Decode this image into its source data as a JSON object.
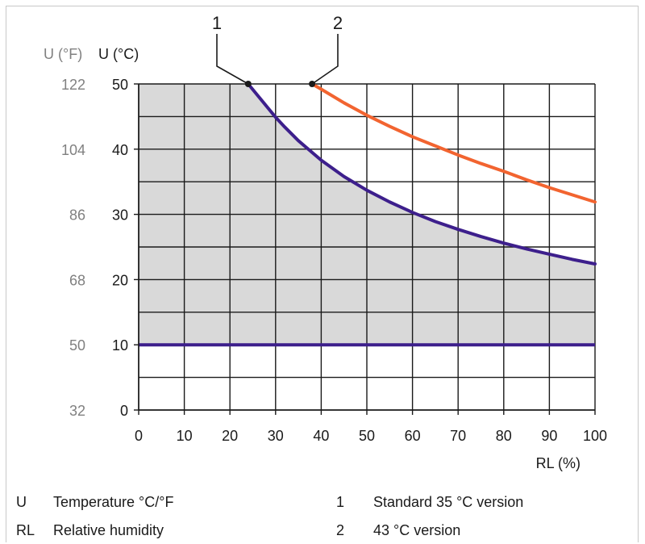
{
  "chart_data": {
    "type": "line",
    "xlabel": "RL (%)",
    "ylabel_f": "U (°F)",
    "ylabel_c": "U (°C)",
    "xlim": [
      0,
      100
    ],
    "ylim": [
      0,
      50
    ],
    "x_ticks": [
      "0",
      "10",
      "20",
      "30",
      "40",
      "50",
      "60",
      "70",
      "80",
      "90",
      "100"
    ],
    "y_ticks_c": [
      "0",
      "10",
      "20",
      "30",
      "40",
      "50"
    ],
    "y_ticks_f": [
      "32",
      "50",
      "68",
      "86",
      "104",
      "122"
    ],
    "grid": true,
    "series": [
      {
        "name": "1",
        "color": "#3d1f8c",
        "shaded": true,
        "x": [
          24,
          26,
          28,
          30,
          32,
          35,
          40,
          45,
          50,
          55,
          60,
          65,
          70,
          75,
          80,
          85,
          90,
          95,
          100
        ],
        "y": [
          50,
          48.3,
          46.6,
          44.9,
          43.4,
          41.3,
          38.3,
          35.8,
          33.7,
          31.9,
          30.3,
          28.9,
          27.7,
          26.6,
          25.6,
          24.7,
          23.9,
          23.1,
          22.4
        ],
        "lower_bound": 10
      },
      {
        "name": "2",
        "color": "#f26430",
        "shaded": false,
        "x": [
          38,
          40,
          45,
          50,
          55,
          60,
          65,
          70,
          75,
          80,
          85,
          90,
          95,
          100
        ],
        "y": [
          50,
          49.2,
          47.1,
          45.2,
          43.5,
          41.9,
          40.5,
          39.1,
          37.8,
          36.6,
          35.3,
          34.1,
          33.0,
          31.9
        ]
      }
    ],
    "lower_line": {
      "y": 10,
      "color": "#3d1f8c"
    },
    "shade_color": "#d9d9d9",
    "callouts": [
      "1",
      "2"
    ]
  },
  "legend": {
    "left": [
      {
        "key": "U",
        "value": "Temperature °C/°F"
      },
      {
        "key": "RL",
        "value": "Relative humidity"
      }
    ],
    "right": [
      {
        "key": "1",
        "value": "Standard 35 °C version"
      },
      {
        "key": "2",
        "value": "43 °C version"
      }
    ]
  }
}
